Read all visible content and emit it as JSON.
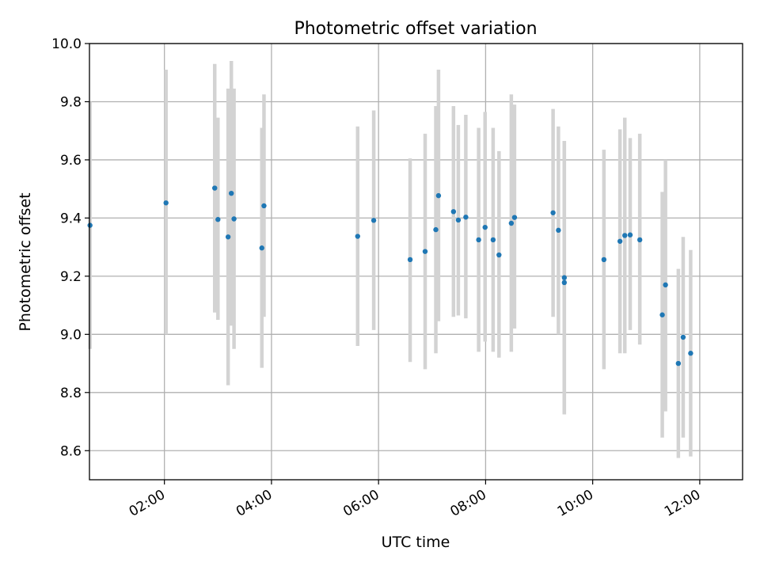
{
  "chart_data": {
    "type": "scatter",
    "title": "Photometric offset variation",
    "xlabel": "UTC time",
    "ylabel": "Photometric offset",
    "xlim_hours": [
      0.6,
      12.8
    ],
    "ylim": [
      8.5,
      10.0
    ],
    "grid": true,
    "x_ticks": [
      {
        "value": 2,
        "label": "02:00"
      },
      {
        "value": 4,
        "label": "04:00"
      },
      {
        "value": 6,
        "label": "06:00"
      },
      {
        "value": 8,
        "label": "08:00"
      },
      {
        "value": 10,
        "label": "10:00"
      },
      {
        "value": 12,
        "label": "12:00"
      }
    ],
    "y_ticks": [
      {
        "value": 8.6,
        "label": "8.6"
      },
      {
        "value": 8.8,
        "label": "8.8"
      },
      {
        "value": 9.0,
        "label": "9.0"
      },
      {
        "value": 9.2,
        "label": "9.2"
      },
      {
        "value": 9.4,
        "label": "9.4"
      },
      {
        "value": 9.6,
        "label": "9.6"
      },
      {
        "value": 9.8,
        "label": "9.8"
      },
      {
        "value": 10.0,
        "label": "10.0"
      }
    ],
    "point_color": "#1f77b4",
    "errorbar_color": "#d3d3d3",
    "points": [
      {
        "t": 0.61,
        "y": 9.375,
        "lo": 8.95,
        "hi": 9.8
      },
      {
        "t": 2.03,
        "y": 9.452,
        "lo": 9.0,
        "hi": 9.91
      },
      {
        "t": 2.94,
        "y": 9.503,
        "lo": 9.075,
        "hi": 9.93
      },
      {
        "t": 3.0,
        "y": 9.395,
        "lo": 9.05,
        "hi": 9.745
      },
      {
        "t": 3.19,
        "y": 9.335,
        "lo": 8.825,
        "hi": 9.845
      },
      {
        "t": 3.25,
        "y": 9.485,
        "lo": 9.03,
        "hi": 9.94
      },
      {
        "t": 3.3,
        "y": 9.397,
        "lo": 8.95,
        "hi": 9.845
      },
      {
        "t": 3.82,
        "y": 9.297,
        "lo": 8.885,
        "hi": 9.71
      },
      {
        "t": 3.86,
        "y": 9.442,
        "lo": 9.06,
        "hi": 9.825
      },
      {
        "t": 5.61,
        "y": 9.337,
        "lo": 8.96,
        "hi": 9.715
      },
      {
        "t": 5.91,
        "y": 9.392,
        "lo": 9.015,
        "hi": 9.77
      },
      {
        "t": 6.59,
        "y": 9.257,
        "lo": 8.905,
        "hi": 9.605
      },
      {
        "t": 6.87,
        "y": 9.285,
        "lo": 8.88,
        "hi": 9.69
      },
      {
        "t": 7.07,
        "y": 9.36,
        "lo": 8.935,
        "hi": 9.785
      },
      {
        "t": 7.12,
        "y": 9.477,
        "lo": 9.045,
        "hi": 9.91
      },
      {
        "t": 7.4,
        "y": 9.422,
        "lo": 9.06,
        "hi": 9.785
      },
      {
        "t": 7.49,
        "y": 9.393,
        "lo": 9.065,
        "hi": 9.72
      },
      {
        "t": 7.63,
        "y": 9.403,
        "lo": 9.055,
        "hi": 9.755
      },
      {
        "t": 7.87,
        "y": 9.325,
        "lo": 8.94,
        "hi": 9.71
      },
      {
        "t": 7.99,
        "y": 9.368,
        "lo": 8.975,
        "hi": 9.765
      },
      {
        "t": 8.14,
        "y": 9.325,
        "lo": 8.94,
        "hi": 9.71
      },
      {
        "t": 8.25,
        "y": 9.273,
        "lo": 8.92,
        "hi": 9.63
      },
      {
        "t": 8.48,
        "y": 9.382,
        "lo": 8.94,
        "hi": 9.825
      },
      {
        "t": 8.54,
        "y": 9.402,
        "lo": 9.02,
        "hi": 9.79
      },
      {
        "t": 9.26,
        "y": 9.418,
        "lo": 9.06,
        "hi": 9.775
      },
      {
        "t": 9.36,
        "y": 9.358,
        "lo": 9.0,
        "hi": 9.715
      },
      {
        "t": 9.47,
        "y": 9.195,
        "lo": 8.725,
        "hi": 9.665
      },
      {
        "t": 9.47,
        "y": 9.178,
        "lo": 8.725,
        "hi": 9.665
      },
      {
        "t": 10.21,
        "y": 9.257,
        "lo": 8.88,
        "hi": 9.635
      },
      {
        "t": 10.51,
        "y": 9.32,
        "lo": 8.935,
        "hi": 9.705
      },
      {
        "t": 10.6,
        "y": 9.34,
        "lo": 8.935,
        "hi": 9.745
      },
      {
        "t": 10.7,
        "y": 9.342,
        "lo": 9.015,
        "hi": 9.675
      },
      {
        "t": 10.88,
        "y": 9.325,
        "lo": 8.965,
        "hi": 9.69
      },
      {
        "t": 11.3,
        "y": 9.067,
        "lo": 8.645,
        "hi": 9.49
      },
      {
        "t": 11.36,
        "y": 9.17,
        "lo": 8.735,
        "hi": 9.6
      },
      {
        "t": 11.6,
        "y": 8.9,
        "lo": 8.575,
        "hi": 9.225
      },
      {
        "t": 11.69,
        "y": 8.99,
        "lo": 8.645,
        "hi": 9.335
      },
      {
        "t": 11.83,
        "y": 8.935,
        "lo": 8.58,
        "hi": 9.29
      }
    ]
  }
}
